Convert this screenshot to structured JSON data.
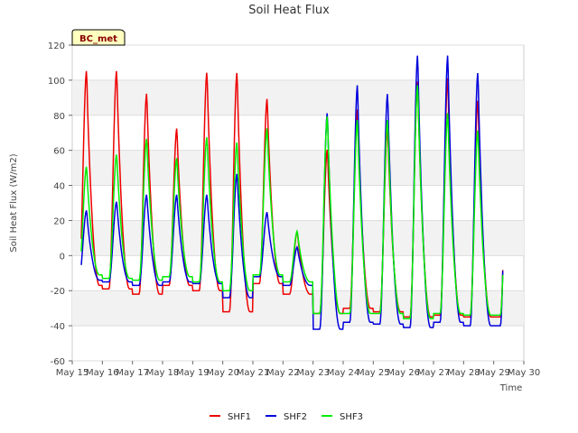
{
  "chart_data": {
    "type": "line",
    "title": "Soil Heat Flux",
    "xlabel": "Time",
    "ylabel": "Soil Heat Flux (W/m2)",
    "badge": "BC_met",
    "ylim": [
      -60,
      120
    ],
    "yticks": [
      -60,
      -40,
      -20,
      0,
      20,
      40,
      60,
      80,
      100,
      120
    ],
    "xlim": [
      15,
      30
    ],
    "xtick_values": [
      15,
      16,
      17,
      18,
      19,
      20,
      21,
      22,
      23,
      24,
      25,
      26,
      27,
      28,
      29,
      30
    ],
    "xtick_labels": [
      "May 15",
      "May 16",
      "May 17",
      "May 18",
      "May 19",
      "May 20",
      "May 21",
      "May 22",
      "May 23",
      "May 24",
      "May 25",
      "May 26",
      "May 27",
      "May 28",
      "May 29",
      "May 30"
    ],
    "grid": true,
    "legend_position": "bottom-center",
    "x_start": 15.3,
    "x_end": 29.3,
    "day_params": [
      {
        "day": 15,
        "base": [
          -17,
          -14,
          -11
        ],
        "spike": [
          106,
          26,
          51
        ]
      },
      {
        "day": 16,
        "base": [
          -19,
          -15,
          -13
        ],
        "spike": [
          106,
          31,
          58
        ]
      },
      {
        "day": 17,
        "base": [
          -22,
          -17,
          -14
        ],
        "spike": [
          93,
          35,
          67
        ]
      },
      {
        "day": 18,
        "base": [
          -17,
          -15,
          -12
        ],
        "spike": [
          73,
          35,
          56
        ]
      },
      {
        "day": 19,
        "base": [
          -20,
          -16,
          -15
        ],
        "spike": [
          105,
          35,
          68
        ]
      },
      {
        "day": 20,
        "base": [
          -32,
          -24,
          -20
        ],
        "spike": [
          105,
          47,
          65
        ]
      },
      {
        "day": 21,
        "base": [
          -16,
          -12,
          -11
        ],
        "spike": [
          90,
          25,
          73
        ]
      },
      {
        "day": 22,
        "base": [
          -22,
          -17,
          -15
        ],
        "spike": [
          14,
          5,
          14
        ]
      },
      {
        "day": 23,
        "base": [
          -33,
          -42,
          -33
        ],
        "spike": [
          61,
          82,
          80
        ]
      },
      {
        "day": 24,
        "base": [
          -30,
          -38,
          -33
        ],
        "spike": [
          84,
          98,
          78
        ]
      },
      {
        "day": 25,
        "base": [
          -32,
          -39,
          -33
        ],
        "spike": [
          73,
          93,
          78
        ]
      },
      {
        "day": 26,
        "base": [
          -35,
          -41,
          -36
        ],
        "spike": [
          100,
          115,
          98
        ]
      },
      {
        "day": 27,
        "base": [
          -34,
          -38,
          -33
        ],
        "spike": [
          102,
          115,
          82
        ]
      },
      {
        "day": 28,
        "base": [
          -35,
          -40,
          -34
        ],
        "spike": [
          89,
          105,
          72
        ]
      }
    ],
    "series": [
      {
        "name": "SHF1",
        "color": "#ee0000"
      },
      {
        "name": "SHF2",
        "color": "#0000dd"
      },
      {
        "name": "SHF3",
        "color": "#00ee00"
      }
    ]
  }
}
